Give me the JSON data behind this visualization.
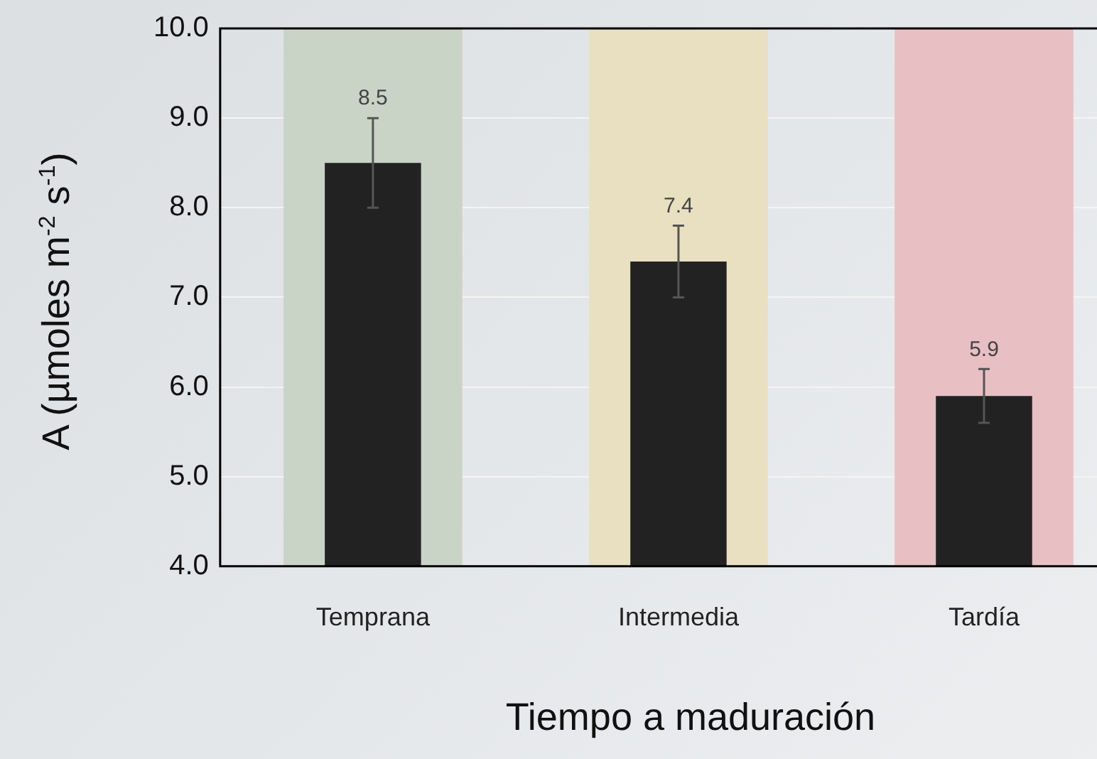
{
  "chart_data": {
    "type": "bar",
    "xlabel": "Tiempo a maduración",
    "ylabel": "A (µmoles m$^{-2}$ s$^{-1}$)",
    "categories": [
      "Temprana",
      "Intermedia",
      "Tardía"
    ],
    "series": [
      {
        "values": [
          10,
          10,
          10
        ],
        "colors": [
          "#c9d4c7",
          "#e8e0c0",
          "#e8bfc3"
        ]
      },
      {
        "values": [
          8.5,
          7.4,
          5.9
        ],
        "color": "#222222",
        "errors": [
          0.5,
          0.4,
          0.3
        ],
        "value_labels": [
          "8.5",
          "7.4",
          "5.9"
        ]
      }
    ],
    "ylim": [
      4,
      10
    ],
    "yticks": [
      {
        "value": 4,
        "label": "4.0"
      },
      {
        "value": 5,
        "label": "5.0"
      },
      {
        "value": 6,
        "label": "6.0"
      },
      {
        "value": 7,
        "label": "7.0"
      },
      {
        "value": 8,
        "label": "8.0"
      },
      {
        "value": 9,
        "label": "9.0"
      },
      {
        "value": 10,
        "label": "10.0"
      }
    ],
    "grid": "y",
    "legend": false
  }
}
